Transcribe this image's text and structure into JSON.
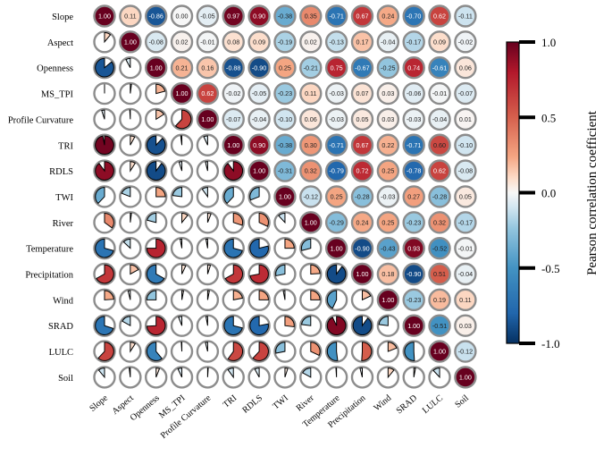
{
  "chart_data": {
    "type": "heatmap",
    "variables": [
      "Slope",
      "Aspect",
      "Openness",
      "MS_TPI",
      "Profile Curvature",
      "TRI",
      "RDLS",
      "TWI",
      "River",
      "Temperature",
      "Precipitation",
      "Wind",
      "SRAD",
      "LULC",
      "Soil"
    ],
    "matrix": [
      [
        1.0,
        0.11,
        -0.86,
        0.0,
        -0.05,
        0.97,
        0.9,
        -0.38,
        0.35,
        -0.71,
        0.67,
        0.24,
        -0.7,
        0.62,
        -0.11
      ],
      [
        0.11,
        1.0,
        -0.08,
        0.02,
        -0.01,
        0.08,
        0.09,
        -0.19,
        0.02,
        -0.13,
        0.17,
        -0.04,
        -0.17,
        0.09,
        -0.02
      ],
      [
        -0.86,
        -0.08,
        1.0,
        0.21,
        0.16,
        -0.88,
        -0.9,
        0.25,
        -0.21,
        0.75,
        -0.67,
        -0.25,
        0.74,
        -0.61,
        0.06
      ],
      [
        0.0,
        0.02,
        0.21,
        1.0,
        0.62,
        -0.02,
        -0.05,
        -0.23,
        0.11,
        -0.03,
        0.07,
        0.03,
        -0.06,
        -0.01,
        -0.07
      ],
      [
        -0.05,
        -0.01,
        0.16,
        0.62,
        1.0,
        -0.07,
        -0.04,
        -0.1,
        0.06,
        -0.03,
        0.05,
        0.03,
        -0.03,
        -0.04,
        0.01
      ],
      [
        0.97,
        0.08,
        -0.88,
        -0.02,
        -0.07,
        1.0,
        0.9,
        -0.38,
        0.3,
        -0.71,
        0.67,
        0.22,
        -0.71,
        0.6,
        -0.1
      ],
      [
        0.9,
        0.09,
        -0.9,
        -0.05,
        -0.04,
        0.9,
        1.0,
        -0.31,
        0.32,
        -0.79,
        0.72,
        0.25,
        -0.78,
        0.62,
        -0.08
      ],
      [
        -0.38,
        -0.19,
        0.25,
        -0.23,
        -0.1,
        -0.38,
        -0.31,
        1.0,
        -0.12,
        0.25,
        -0.28,
        -0.03,
        0.27,
        -0.28,
        0.05
      ],
      [
        0.35,
        0.02,
        -0.21,
        0.11,
        0.06,
        0.3,
        0.32,
        -0.12,
        1.0,
        -0.29,
        0.24,
        0.25,
        -0.23,
        0.32,
        -0.17
      ],
      [
        -0.71,
        -0.13,
        0.75,
        -0.03,
        -0.03,
        -0.71,
        -0.79,
        0.25,
        -0.29,
        1.0,
        -0.9,
        -0.43,
        0.93,
        -0.52,
        -0.01
      ],
      [
        0.67,
        0.17,
        -0.67,
        0.07,
        0.05,
        0.67,
        0.72,
        -0.28,
        0.24,
        -0.9,
        1.0,
        0.18,
        -0.9,
        0.51,
        -0.04
      ],
      [
        0.24,
        -0.04,
        -0.25,
        0.03,
        0.03,
        0.22,
        0.25,
        -0.03,
        0.25,
        -0.43,
        0.18,
        1.0,
        -0.23,
        0.19,
        0.11
      ],
      [
        -0.7,
        -0.17,
        0.74,
        -0.06,
        -0.03,
        -0.71,
        -0.78,
        0.27,
        -0.23,
        0.93,
        -0.9,
        -0.23,
        1.0,
        -0.51,
        0.03
      ],
      [
        0.62,
        0.09,
        -0.61,
        -0.01,
        -0.04,
        0.6,
        0.62,
        -0.28,
        0.32,
        -0.52,
        0.51,
        0.19,
        -0.51,
        1.0,
        -0.12
      ],
      [
        -0.11,
        -0.02,
        0.06,
        -0.07,
        0.01,
        -0.1,
        -0.08,
        0.05,
        -0.17,
        -0.01,
        -0.04,
        0.11,
        0.03,
        -0.12,
        1.0
      ]
    ],
    "upper_display": "number",
    "lower_display": "pie",
    "value_range": [
      -1.0,
      1.0
    ],
    "colorbar": {
      "label": "Pearson correlation coefficient",
      "ticks": [
        1.0,
        0.5,
        0.0,
        -0.5,
        -1.0
      ],
      "tick_labels": [
        "1.0",
        "0.5",
        "0.0",
        "-0.5",
        "-1.0"
      ],
      "placement": "right"
    },
    "colormap": {
      "negative_end": "#1f3e80",
      "mid": "#f7f7f7",
      "positive_end": "#7b0d20"
    }
  }
}
